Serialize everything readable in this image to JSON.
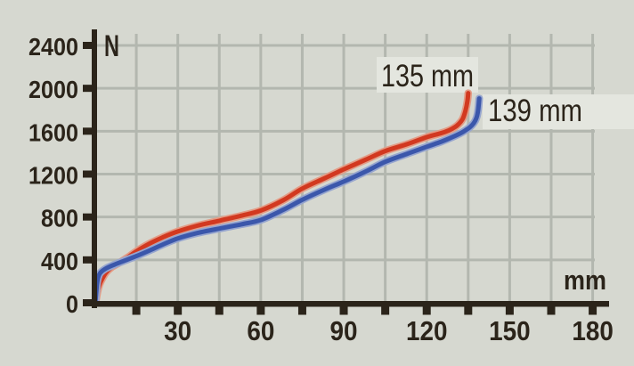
{
  "chart_data": {
    "type": "line",
    "title": "",
    "xlabel": "mm",
    "ylabel": "N",
    "grid": true,
    "legend_position": "inline-annotations",
    "x_axis": {
      "unit": "mm",
      "ticks": [
        30,
        60,
        90,
        120,
        150,
        180
      ],
      "minor_step": 15,
      "range": [
        0,
        186
      ]
    },
    "y_axis": {
      "unit": "N",
      "ticks": [
        0,
        400,
        800,
        1200,
        1600,
        2000,
        2400
      ],
      "range": [
        0,
        2500
      ]
    },
    "series": [
      {
        "name": "spring-curve-135mm",
        "label": "135 mm",
        "color": "#d23920",
        "halo_color": "#e39c86",
        "points": [
          [
            0.3,
            0
          ],
          [
            0.8,
            80
          ],
          [
            1.5,
            155
          ],
          [
            2.5,
            215
          ],
          [
            4,
            280
          ],
          [
            6,
            330
          ],
          [
            9,
            375
          ],
          [
            12,
            425
          ],
          [
            15,
            480
          ],
          [
            20,
            555
          ],
          [
            25,
            615
          ],
          [
            30,
            665
          ],
          [
            37,
            718
          ],
          [
            45,
            765
          ],
          [
            53,
            812
          ],
          [
            60,
            860
          ],
          [
            68,
            955
          ],
          [
            75,
            1065
          ],
          [
            83,
            1160
          ],
          [
            90,
            1245
          ],
          [
            98,
            1335
          ],
          [
            105,
            1415
          ],
          [
            113,
            1480
          ],
          [
            120,
            1545
          ],
          [
            125,
            1580
          ],
          [
            128,
            1608
          ],
          [
            130,
            1635
          ],
          [
            131.5,
            1665
          ],
          [
            133,
            1715
          ],
          [
            134,
            1790
          ],
          [
            134.7,
            1880
          ],
          [
            135,
            1955
          ]
        ]
      },
      {
        "name": "spring-curve-139mm",
        "label": "139 mm",
        "color": "#3b57ab",
        "halo_color": "#96a5cf",
        "points": [
          [
            0.2,
            0
          ],
          [
            0.5,
            100
          ],
          [
            0.8,
            180
          ],
          [
            1.2,
            235
          ],
          [
            2,
            280
          ],
          [
            4,
            320
          ],
          [
            7,
            355
          ],
          [
            10,
            385
          ],
          [
            15,
            435
          ],
          [
            20,
            490
          ],
          [
            25,
            548
          ],
          [
            30,
            600
          ],
          [
            37,
            650
          ],
          [
            45,
            692
          ],
          [
            53,
            732
          ],
          [
            60,
            772
          ],
          [
            68,
            865
          ],
          [
            75,
            960
          ],
          [
            83,
            1055
          ],
          [
            90,
            1130
          ],
          [
            98,
            1225
          ],
          [
            105,
            1315
          ],
          [
            113,
            1390
          ],
          [
            120,
            1455
          ],
          [
            125,
            1500
          ],
          [
            129,
            1542
          ],
          [
            132,
            1578
          ],
          [
            134,
            1608
          ],
          [
            135.5,
            1635
          ],
          [
            137,
            1675
          ],
          [
            138,
            1725
          ],
          [
            138.6,
            1800
          ],
          [
            139,
            1905
          ]
        ]
      }
    ]
  },
  "colors": {
    "background": "#d6d8d0",
    "grid": "#b3b7af",
    "axis": "#2b241a",
    "text": "#2b241a",
    "annotation_box": "#e4e6df"
  }
}
